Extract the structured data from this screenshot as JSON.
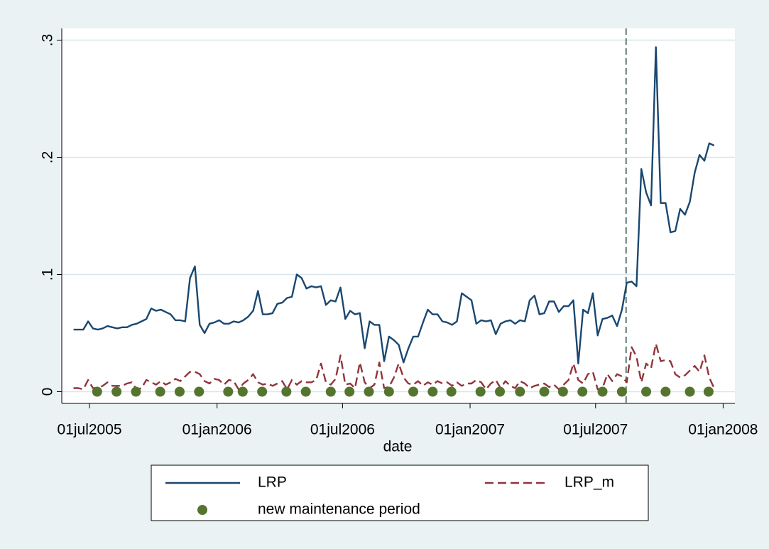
{
  "chart_data": {
    "type": "line",
    "x_label": "date",
    "x": [
      "2005-06-08",
      "2005-06-15",
      "2005-06-22",
      "2005-06-29",
      "2005-07-06",
      "2005-07-13",
      "2005-07-20",
      "2005-07-27",
      "2005-08-03",
      "2005-08-10",
      "2005-08-17",
      "2005-08-24",
      "2005-08-31",
      "2005-09-07",
      "2005-09-14",
      "2005-09-21",
      "2005-09-28",
      "2005-10-05",
      "2005-10-12",
      "2005-10-19",
      "2005-10-26",
      "2005-11-02",
      "2005-11-09",
      "2005-11-16",
      "2005-11-23",
      "2005-11-30",
      "2005-12-07",
      "2005-12-14",
      "2005-12-21",
      "2005-12-28",
      "2006-01-04",
      "2006-01-11",
      "2006-01-18",
      "2006-01-25",
      "2006-02-01",
      "2006-02-08",
      "2006-02-15",
      "2006-02-22",
      "2006-03-01",
      "2006-03-08",
      "2006-03-15",
      "2006-03-22",
      "2006-03-29",
      "2006-04-05",
      "2006-04-12",
      "2006-04-19",
      "2006-04-26",
      "2006-05-03",
      "2006-05-10",
      "2006-05-17",
      "2006-05-24",
      "2006-05-31",
      "2006-06-07",
      "2006-06-14",
      "2006-06-21",
      "2006-06-28",
      "2006-07-05",
      "2006-07-12",
      "2006-07-19",
      "2006-07-26",
      "2006-08-02",
      "2006-08-09",
      "2006-08-16",
      "2006-08-23",
      "2006-08-30",
      "2006-09-06",
      "2006-09-13",
      "2006-09-20",
      "2006-09-27",
      "2006-10-04",
      "2006-10-11",
      "2006-10-18",
      "2006-10-25",
      "2006-11-01",
      "2006-11-08",
      "2006-11-15",
      "2006-11-22",
      "2006-11-29",
      "2006-12-06",
      "2006-12-13",
      "2006-12-20",
      "2006-12-27",
      "2007-01-03",
      "2007-01-10",
      "2007-01-17",
      "2007-01-24",
      "2007-01-31",
      "2007-02-07",
      "2007-02-14",
      "2007-02-21",
      "2007-02-28",
      "2007-03-07",
      "2007-03-14",
      "2007-03-21",
      "2007-03-28",
      "2007-04-04",
      "2007-04-11",
      "2007-04-18",
      "2007-04-25",
      "2007-05-02",
      "2007-05-09",
      "2007-05-16",
      "2007-05-23",
      "2007-05-30",
      "2007-06-06",
      "2007-06-13",
      "2007-06-20",
      "2007-06-27",
      "2007-07-04",
      "2007-07-11",
      "2007-07-18",
      "2007-07-25",
      "2007-08-01",
      "2007-08-08",
      "2007-08-15",
      "2007-08-22",
      "2007-08-29",
      "2007-09-05",
      "2007-09-12",
      "2007-09-19",
      "2007-09-26",
      "2007-10-03",
      "2007-10-10",
      "2007-10-17",
      "2007-10-24",
      "2007-10-31",
      "2007-11-07",
      "2007-11-14",
      "2007-11-21",
      "2007-11-28",
      "2007-12-05",
      "2007-12-12",
      "2007-12-19"
    ],
    "series": [
      {
        "name": "LRP",
        "color": "#1a476f",
        "style": "solid",
        "values": [
          0.053,
          0.053,
          0.053,
          0.06,
          0.054,
          0.053,
          0.054,
          0.056,
          0.055,
          0.054,
          0.055,
          0.055,
          0.057,
          0.058,
          0.06,
          0.062,
          0.071,
          0.069,
          0.07,
          0.068,
          0.066,
          0.061,
          0.061,
          0.06,
          0.097,
          0.107,
          0.057,
          0.05,
          0.058,
          0.059,
          0.061,
          0.058,
          0.058,
          0.06,
          0.059,
          0.061,
          0.064,
          0.069,
          0.086,
          0.066,
          0.066,
          0.067,
          0.075,
          0.076,
          0.08,
          0.081,
          0.1,
          0.097,
          0.088,
          0.09,
          0.089,
          0.09,
          0.074,
          0.078,
          0.077,
          0.089,
          0.062,
          0.069,
          0.066,
          0.067,
          0.037,
          0.06,
          0.057,
          0.057,
          0.026,
          0.047,
          0.044,
          0.04,
          0.025,
          0.037,
          0.047,
          0.047,
          0.059,
          0.07,
          0.066,
          0.066,
          0.06,
          0.059,
          0.057,
          0.06,
          0.084,
          0.081,
          0.078,
          0.058,
          0.061,
          0.06,
          0.061,
          0.049,
          0.058,
          0.06,
          0.061,
          0.058,
          0.061,
          0.06,
          0.078,
          0.082,
          0.066,
          0.067,
          0.077,
          0.077,
          0.068,
          0.073,
          0.073,
          0.078,
          0.024,
          0.07,
          0.067,
          0.084,
          0.048,
          0.062,
          0.063,
          0.065,
          0.056,
          0.07,
          0.093,
          0.094,
          0.09,
          0.19,
          0.17,
          0.159,
          0.294,
          0.161,
          0.161,
          0.136,
          0.137,
          0.156,
          0.151,
          0.162,
          0.187,
          0.202,
          0.197,
          0.212,
          0.21
        ]
      },
      {
        "name": "LRP_m",
        "color": "#90353b",
        "style": "dashed",
        "values": [
          0.003,
          0.003,
          0.002,
          0.01,
          0.003,
          0.003,
          0.005,
          0.008,
          0.005,
          0.005,
          0.005,
          0.007,
          0.008,
          0.002,
          0.003,
          0.01,
          0.008,
          0.006,
          0.009,
          0.006,
          0.008,
          0.011,
          0.009,
          0.013,
          0.017,
          0.017,
          0.015,
          0.009,
          0.007,
          0.011,
          0.01,
          0.006,
          0.01,
          0.009,
          0.002,
          0.007,
          0.01,
          0.015,
          0.008,
          0.006,
          0.007,
          0.005,
          0.007,
          0.009,
          0.002,
          0.01,
          0.006,
          0.009,
          0.008,
          0.008,
          0.01,
          0.024,
          0.008,
          0.006,
          0.011,
          0.031,
          0.006,
          0.007,
          0.003,
          0.025,
          0.008,
          0.003,
          0.006,
          0.025,
          0.003,
          0.004,
          0.012,
          0.024,
          0.012,
          0.007,
          0.006,
          0.009,
          0.005,
          0.008,
          0.006,
          0.009,
          0.007,
          0.008,
          0.005,
          0.008,
          0.005,
          0.007,
          0.007,
          0.01,
          0.008,
          0.002,
          0.007,
          0.01,
          0.003,
          0.009,
          0.005,
          0.003,
          0.009,
          0.007,
          0.003,
          0.005,
          0.006,
          0.007,
          0.004,
          0.006,
          0.002,
          0.006,
          0.01,
          0.024,
          0.01,
          0.007,
          0.015,
          0.017,
          0.002,
          0.003,
          0.015,
          0.009,
          0.015,
          0.013,
          0.008,
          0.038,
          0.03,
          0.008,
          0.024,
          0.02,
          0.041,
          0.026,
          0.027,
          0.026,
          0.015,
          0.012,
          0.014,
          0.018,
          0.022,
          0.017,
          0.031,
          0.012,
          0.003
        ]
      },
      {
        "name": "new maintenance period",
        "color": "#55752f",
        "style": "dots",
        "x": [
          "2005-07-12",
          "2005-08-09",
          "2005-09-06",
          "2005-10-11",
          "2005-11-08",
          "2005-12-06",
          "2006-01-17",
          "2006-02-07",
          "2006-03-07",
          "2006-04-11",
          "2006-05-09",
          "2006-06-14",
          "2006-07-11",
          "2006-08-08",
          "2006-09-06",
          "2006-10-11",
          "2006-11-08",
          "2006-12-05",
          "2007-01-16",
          "2007-02-13",
          "2007-03-14",
          "2007-04-18",
          "2007-05-15",
          "2007-06-12",
          "2007-07-11",
          "2007-08-08",
          "2007-09-12",
          "2007-10-10",
          "2007-11-14",
          "2007-12-11"
        ],
        "values": [
          0,
          0,
          0,
          0,
          0,
          0,
          0,
          0,
          0,
          0,
          0,
          0,
          0,
          0,
          0,
          0,
          0,
          0,
          0,
          0,
          0,
          0,
          0,
          0,
          0,
          0,
          0,
          0,
          0,
          0
        ]
      }
    ],
    "vline": {
      "x": "2007-08-14",
      "color": "#5a7a70"
    },
    "xlim": [
      "2005-05-22",
      "2008-01-18"
    ],
    "xticks": [
      {
        "value": "2005-07-01",
        "label": "01jul2005"
      },
      {
        "value": "2006-01-01",
        "label": "01jan2006"
      },
      {
        "value": "2006-07-01",
        "label": "01jul2006"
      },
      {
        "value": "2007-01-01",
        "label": "01jan2007"
      },
      {
        "value": "2007-07-01",
        "label": "01jul2007"
      },
      {
        "value": "2008-01-01",
        "label": "01jan2008"
      }
    ],
    "ylim": [
      -0.01,
      0.31
    ],
    "yticks": [
      0,
      {
        "value": 0.1,
        "label": ".1"
      },
      {
        "value": 0.2,
        "label": ".2"
      },
      {
        "value": 0.3,
        "label": ".3"
      }
    ],
    "grid": true
  }
}
